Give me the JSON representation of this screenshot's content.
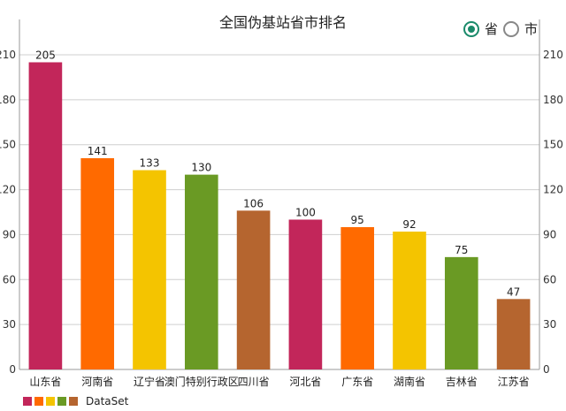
{
  "title": "全国伪基站省市排名",
  "toggle": {
    "options": [
      {
        "label": "省",
        "checked": true
      },
      {
        "label": "市",
        "checked": false
      }
    ],
    "accent": "#1a8a6a"
  },
  "chart_data": {
    "type": "bar",
    "title": "全国伪基站省市排名",
    "categories": [
      "山东省",
      "河南省",
      "辽宁省",
      "澳门特别行政区",
      "四川省",
      "河北省",
      "广东省",
      "湖南省",
      "吉林省",
      "江苏省"
    ],
    "values": [
      205,
      141,
      133,
      130,
      106,
      100,
      95,
      92,
      75,
      47
    ],
    "colors": [
      "#c2265a",
      "#ff6a00",
      "#f4c400",
      "#6a9a24",
      "#b5652f",
      "#c2265a",
      "#ff6a00",
      "#f4c400",
      "#6a9a24",
      "#b5652f"
    ],
    "ylim": [
      0,
      210
    ],
    "yticks": [
      0,
      30,
      60,
      90,
      120,
      150,
      180,
      210
    ],
    "right_axis": true,
    "grid": true,
    "legend": {
      "label": "DataSet",
      "position": "bottom-left",
      "swatches": [
        "#c2265a",
        "#ff6a00",
        "#f4c400",
        "#6a9a24",
        "#b5652f"
      ]
    }
  }
}
